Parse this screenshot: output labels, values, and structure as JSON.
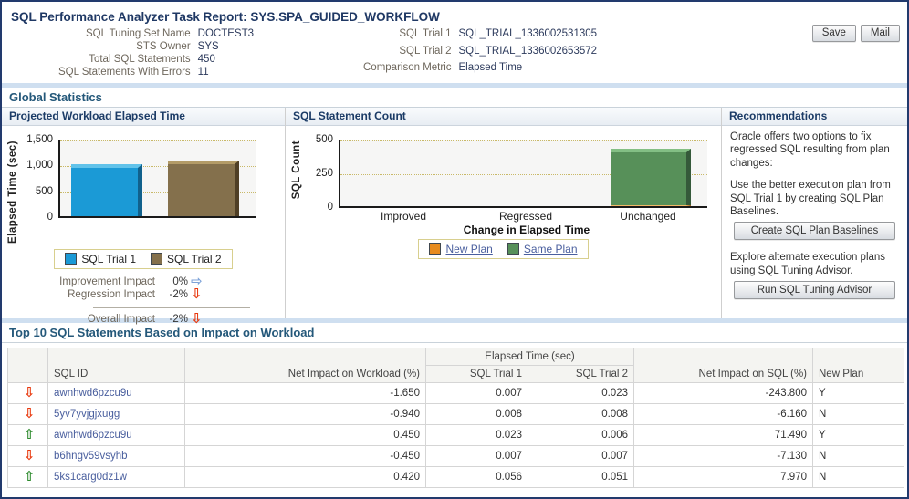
{
  "page": {
    "title": "SQL Performance Analyzer Task Report: SYS.SPA_GUIDED_WORKFLOW"
  },
  "toolbar": {
    "save": "Save",
    "mail": "Mail"
  },
  "summary": {
    "left": [
      {
        "label": "SQL Tuning Set Name",
        "value": "DOCTEST3"
      },
      {
        "label": "STS Owner",
        "value": "SYS"
      },
      {
        "label": "Total SQL Statements",
        "value": "450"
      },
      {
        "label": "SQL Statements With Errors",
        "value": "11"
      }
    ],
    "right": [
      {
        "label": "SQL Trial 1",
        "value": "SQL_TRIAL_1336002531305"
      },
      {
        "label": "SQL Trial 2",
        "value": "SQL_TRIAL_1336002653572"
      },
      {
        "label": "Comparison Metric",
        "value": "Elapsed Time"
      }
    ]
  },
  "sections": {
    "global_statistics": "Global Statistics",
    "top_sql": "Top 10 SQL Statements Based on Impact on Workload"
  },
  "impact": {
    "improvement_label": "Improvement Impact",
    "improvement_value": "0%",
    "regression_label": "Regression Impact",
    "regression_value": "-2%",
    "overall_label": "Overall Impact",
    "overall_value": "-2%"
  },
  "icons": {
    "up_arrow": "⇧",
    "down_arrow": "⇩",
    "right_arrow": "⇨"
  },
  "recommendations": {
    "title": "Recommendations",
    "para1": "Oracle offers two options to fix regressed SQL resulting from plan changes:",
    "para2": "Use the better execution plan from SQL Trial 1 by creating SQL Plan Baselines.",
    "button_baselines": "Create SQL Plan Baselines",
    "para3": "Explore alternate execution plans using SQL Tuning Advisor.",
    "button_advisor": "Run SQL Tuning Advisor"
  },
  "chart_data": [
    {
      "type": "bar",
      "title": "Projected Workload Elapsed Time",
      "ylabel": "Elapsed Time (sec)",
      "ylim": [
        0,
        1500
      ],
      "ytick_labels": [
        "1,500",
        "1,000",
        "500",
        "0"
      ],
      "grid": "dotted horizontal",
      "categories": [
        "SQL Trial 1",
        "SQL Trial 2"
      ],
      "values": [
        1010,
        1075
      ],
      "colors": [
        "#1b9ad6",
        "#84704c"
      ],
      "legend": [
        "SQL Trial 1",
        "SQL Trial 2"
      ],
      "legend_position": "bottom"
    },
    {
      "type": "bar",
      "title": "SQL Statement Count",
      "ylabel": "SQL Count",
      "xlabel": "Change in Elapsed Time",
      "ylim": [
        0,
        500
      ],
      "ytick_labels": [
        "500",
        "250",
        "0"
      ],
      "grid": "dotted horizontal",
      "categories": [
        "Improved",
        "Regressed",
        "Unchanged"
      ],
      "series": [
        {
          "name": "New Plan",
          "color": "#e78b1e",
          "values": [
            0,
            0,
            8
          ]
        },
        {
          "name": "Same Plan",
          "color": "#579059",
          "values": [
            0,
            0,
            422
          ]
        }
      ],
      "legend_position": "bottom"
    }
  ],
  "table": {
    "headers": {
      "sql_id": "SQL ID",
      "net_impact_workload": "Net Impact on Workload (%)",
      "elapsed_time_group": "Elapsed Time (sec)",
      "trial1": "SQL Trial 1",
      "trial2": "SQL Trial 2",
      "net_impact_sql": "Net Impact on SQL (%)",
      "new_plan": "New Plan"
    },
    "rows": [
      {
        "trend": "down",
        "sql_id": "awnhwd6pzcu9u",
        "net_impact_workload": "-1.650",
        "trial1": "0.007",
        "trial2": "0.023",
        "net_impact_sql": "-243.800",
        "new_plan": "Y"
      },
      {
        "trend": "down",
        "sql_id": "5yv7yvjgjxugg",
        "net_impact_workload": "-0.940",
        "trial1": "0.008",
        "trial2": "0.008",
        "net_impact_sql": "-6.160",
        "new_plan": "N"
      },
      {
        "trend": "up",
        "sql_id": "awnhwd6pzcu9u",
        "net_impact_workload": "0.450",
        "trial1": "0.023",
        "trial2": "0.006",
        "net_impact_sql": "71.490",
        "new_plan": "Y"
      },
      {
        "trend": "down",
        "sql_id": "b6hngv59vsyhb",
        "net_impact_workload": "-0.450",
        "trial1": "0.007",
        "trial2": "0.007",
        "net_impact_sql": "-7.130",
        "new_plan": "N"
      },
      {
        "trend": "up",
        "sql_id": "5ks1carg0dz1w",
        "net_impact_workload": "0.420",
        "trial1": "0.056",
        "trial2": "0.051",
        "net_impact_sql": "7.970",
        "new_plan": "N"
      }
    ]
  },
  "colors": {
    "page_border_navy": "#223a6d",
    "section_header_teal": "#24587a",
    "title_navy": "#1f3864",
    "divider_blue": "#cfdff0",
    "link_blue": "#4a5f9e",
    "label_gray_brown": "#6e675c",
    "regression_red": "#e8380d",
    "improvement_green": "#2e8b2e",
    "neutral_arrow_blue": "#7da2d8",
    "bar_blue": "#1b9ad6",
    "bar_brown": "#84704c",
    "bar_green": "#579059",
    "bar_orange": "#e78b1e",
    "gridline_tan": "#c9b968"
  }
}
